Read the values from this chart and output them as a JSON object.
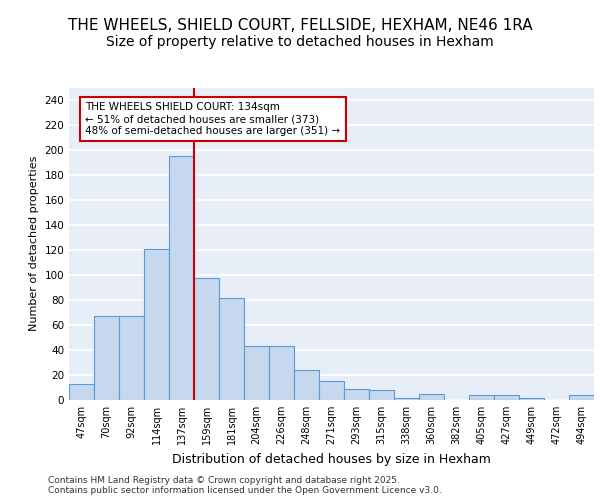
{
  "title1": "THE WHEELS, SHIELD COURT, FELLSIDE, HEXHAM, NE46 1RA",
  "title2": "Size of property relative to detached houses in Hexham",
  "xlabel": "Distribution of detached houses by size in Hexham",
  "ylabel": "Number of detached properties",
  "categories": [
    "47sqm",
    "70sqm",
    "92sqm",
    "114sqm",
    "137sqm",
    "159sqm",
    "181sqm",
    "204sqm",
    "226sqm",
    "248sqm",
    "271sqm",
    "293sqm",
    "315sqm",
    "338sqm",
    "360sqm",
    "382sqm",
    "405sqm",
    "427sqm",
    "449sqm",
    "472sqm",
    "494sqm"
  ],
  "values": [
    13,
    67,
    67,
    121,
    195,
    98,
    82,
    43,
    43,
    24,
    15,
    9,
    8,
    2,
    5,
    0,
    4,
    4,
    2,
    0,
    4
  ],
  "bar_color": "#c5d8ed",
  "bar_edge_color": "#5b9bd5",
  "bg_color": "#e8eef7",
  "grid_color": "#ffffff",
  "vline_color": "#cc0000",
  "vline_pos": 4.5,
  "annotation_text": "THE WHEELS SHIELD COURT: 134sqm\n← 51% of detached houses are smaller (373)\n48% of semi-detached houses are larger (351) →",
  "ann_box_color": "#cc0000",
  "ylim": [
    0,
    250
  ],
  "yticks": [
    0,
    20,
    40,
    60,
    80,
    100,
    120,
    140,
    160,
    180,
    200,
    220,
    240
  ],
  "fig_bg": "#ffffff",
  "footer": "Contains HM Land Registry data © Crown copyright and database right 2025.\nContains public sector information licensed under the Open Government Licence v3.0.",
  "title_fontsize": 11,
  "subtitle_fontsize": 10,
  "ylabel_fontsize": 8,
  "xlabel_fontsize": 9,
  "tick_fontsize": 7,
  "footer_fontsize": 6.5,
  "ann_fontsize": 7.5
}
